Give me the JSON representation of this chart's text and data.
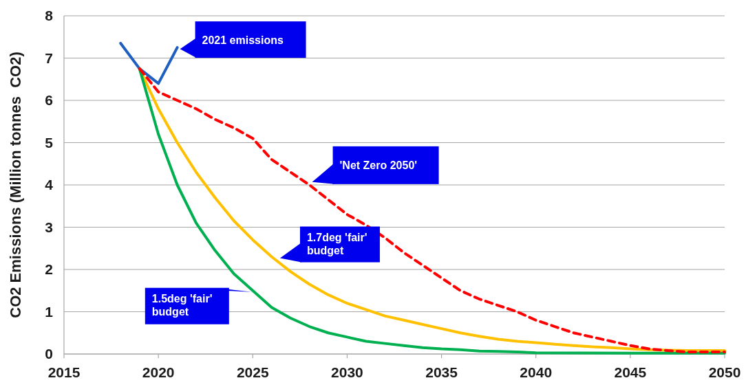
{
  "chart_data": {
    "type": "line",
    "ylabel": "CO2 Emissions (Million tonnes  CO2)",
    "xlim": [
      2015,
      2050
    ],
    "xticks": [
      2015,
      2020,
      2025,
      2030,
      2035,
      2040,
      2045,
      2050
    ],
    "ylim": [
      0,
      8
    ],
    "yticks": [
      0,
      1,
      2,
      3,
      4,
      5,
      6,
      7,
      8
    ],
    "grid": "y",
    "series": [
      {
        "color": "#1f5fbf",
        "line_style": "solid",
        "x": [
          2018,
          2019,
          2020,
          2021
        ],
        "values": [
          7.35,
          6.75,
          6.4,
          7.25
        ]
      },
      {
        "color": "#ff0000",
        "line_style": "dashed",
        "x": [
          2019,
          2020,
          2021,
          2022,
          2023,
          2024,
          2025,
          2026,
          2027,
          2028,
          2029,
          2030,
          2031,
          2032,
          2033,
          2034,
          2035,
          2036,
          2037,
          2038,
          2039,
          2040,
          2041,
          2042,
          2043,
          2044,
          2045,
          2046,
          2047,
          2048,
          2049,
          2050
        ],
        "values": [
          6.75,
          6.2,
          6.0,
          5.8,
          5.55,
          5.35,
          5.1,
          4.6,
          4.3,
          4.0,
          3.65,
          3.3,
          3.05,
          2.75,
          2.4,
          2.1,
          1.8,
          1.5,
          1.3,
          1.15,
          1.0,
          0.8,
          0.65,
          0.5,
          0.4,
          0.3,
          0.2,
          0.12,
          0.08,
          0.05,
          0.05,
          0.05
        ]
      },
      {
        "color": "#ffc000",
        "line_style": "solid",
        "x": [
          2019,
          2020,
          2021,
          2022,
          2023,
          2024,
          2025,
          2026,
          2027,
          2028,
          2029,
          2030,
          2031,
          2032,
          2033,
          2034,
          2035,
          2036,
          2037,
          2038,
          2039,
          2040,
          2041,
          2042,
          2043,
          2044,
          2045,
          2046,
          2047,
          2048,
          2049,
          2050
        ],
        "values": [
          6.75,
          5.8,
          5.0,
          4.3,
          3.7,
          3.15,
          2.7,
          2.3,
          1.95,
          1.65,
          1.4,
          1.2,
          1.05,
          0.9,
          0.8,
          0.7,
          0.6,
          0.5,
          0.42,
          0.35,
          0.3,
          0.27,
          0.23,
          0.2,
          0.17,
          0.15,
          0.12,
          0.1,
          0.09,
          0.08,
          0.08,
          0.08
        ]
      },
      {
        "color": "#00b050",
        "line_style": "solid",
        "x": [
          2019,
          2020,
          2021,
          2022,
          2023,
          2024,
          2025,
          2026,
          2027,
          2028,
          2029,
          2030,
          2031,
          2032,
          2033,
          2034,
          2035,
          2036,
          2037,
          2038,
          2039,
          2040,
          2045,
          2050
        ],
        "values": [
          6.75,
          5.2,
          4.0,
          3.1,
          2.45,
          1.9,
          1.5,
          1.1,
          0.85,
          0.65,
          0.5,
          0.4,
          0.3,
          0.25,
          0.2,
          0.15,
          0.12,
          0.1,
          0.07,
          0.06,
          0.05,
          0.03,
          0.02,
          0.02
        ]
      }
    ],
    "annotations": [
      {
        "text": "2021 emissions",
        "x": 2021,
        "y": 7.25
      },
      {
        "text": "'Net Zero 2050'",
        "x": 2028,
        "y": 4.1
      },
      {
        "text": "1.7deg 'fair' budget",
        "x": 2026.3,
        "y": 2.3
      },
      {
        "text": "1.5deg 'fair' budget",
        "x": 2024.8,
        "y": 1.5
      }
    ]
  }
}
